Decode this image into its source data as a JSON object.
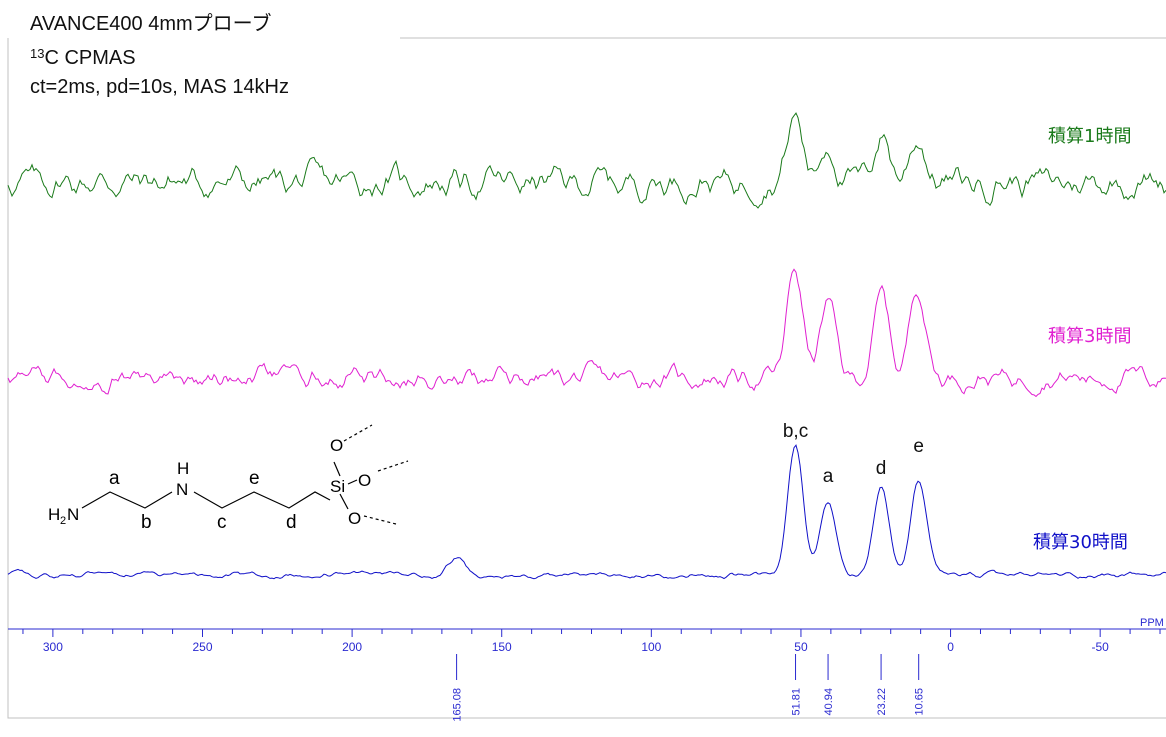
{
  "header": {
    "line1": "AVANCE400 4mmプローブ",
    "line2_sup": "13",
    "line2_rest": "C CPMAS",
    "line3": "ct=2ms, pd=10s, MAS 14kHz"
  },
  "structure": {
    "labels": {
      "a": "a",
      "b": "b",
      "c": "c",
      "d": "d",
      "e": "e"
    },
    "atoms": {
      "h2n_H": "H",
      "h2n_sub": "2",
      "h2n_N": "N",
      "nh_H": "H",
      "nh_N": "N",
      "si": "Si",
      "o1": "O",
      "o2": "O",
      "o3": "O"
    }
  },
  "colors": {
    "green": "#1a7a1a",
    "magenta": "#e020d0",
    "blue": "#1010c8",
    "axis": "#2a2ad0",
    "frame": "#c0c0c0"
  },
  "chart_data": {
    "type": "line",
    "x_unit": "ppm",
    "xlim": [
      315,
      -72
    ],
    "x_ticks": [
      300,
      250,
      200,
      150,
      100,
      50,
      0,
      -50
    ],
    "x_tick_labels": [
      "300",
      "250",
      "200",
      "150",
      "100",
      "50",
      "0",
      "-50"
    ],
    "axis_unit_label": "PPM",
    "series": [
      {
        "name": "積算1時間",
        "color": "#1a7a1a",
        "peaks": [
          {
            "ppm": 52.0,
            "height": 0.65
          },
          {
            "ppm": 41.0,
            "height": 0.4
          },
          {
            "ppm": 23.0,
            "height": 0.5
          },
          {
            "ppm": 11.0,
            "height": 0.45
          }
        ],
        "noise": 0.22
      },
      {
        "name": "積算3時間",
        "color": "#e020d0",
        "peaks": [
          {
            "ppm": 52.0,
            "height": 0.85
          },
          {
            "ppm": 41.0,
            "height": 0.58
          },
          {
            "ppm": 23.0,
            "height": 0.63
          },
          {
            "ppm": 11.0,
            "height": 0.73
          }
        ],
        "noise": 0.12
      },
      {
        "name": "積算30時間",
        "color": "#1010c8",
        "peaks": [
          {
            "ppm": 165.08,
            "height": 0.12
          },
          {
            "ppm": 51.81,
            "height": 0.92
          },
          {
            "ppm": 40.94,
            "height": 0.53
          },
          {
            "ppm": 23.22,
            "height": 0.62
          },
          {
            "ppm": 10.65,
            "height": 0.68
          }
        ],
        "noise": 0.03
      }
    ],
    "peak_assignments": [
      {
        "label": "b,c",
        "ppm": 51.81
      },
      {
        "label": "a",
        "ppm": 40.94
      },
      {
        "label": "d",
        "ppm": 23.22
      },
      {
        "label": "e",
        "ppm": 10.65
      }
    ],
    "peak_picks": [
      {
        "ppm": 165.08,
        "label": "165.08"
      },
      {
        "ppm": 51.81,
        "label": "51.81"
      },
      {
        "ppm": 40.94,
        "label": "40.94"
      },
      {
        "ppm": 23.22,
        "label": "23.22"
      },
      {
        "ppm": 10.65,
        "label": "10.65"
      }
    ]
  }
}
